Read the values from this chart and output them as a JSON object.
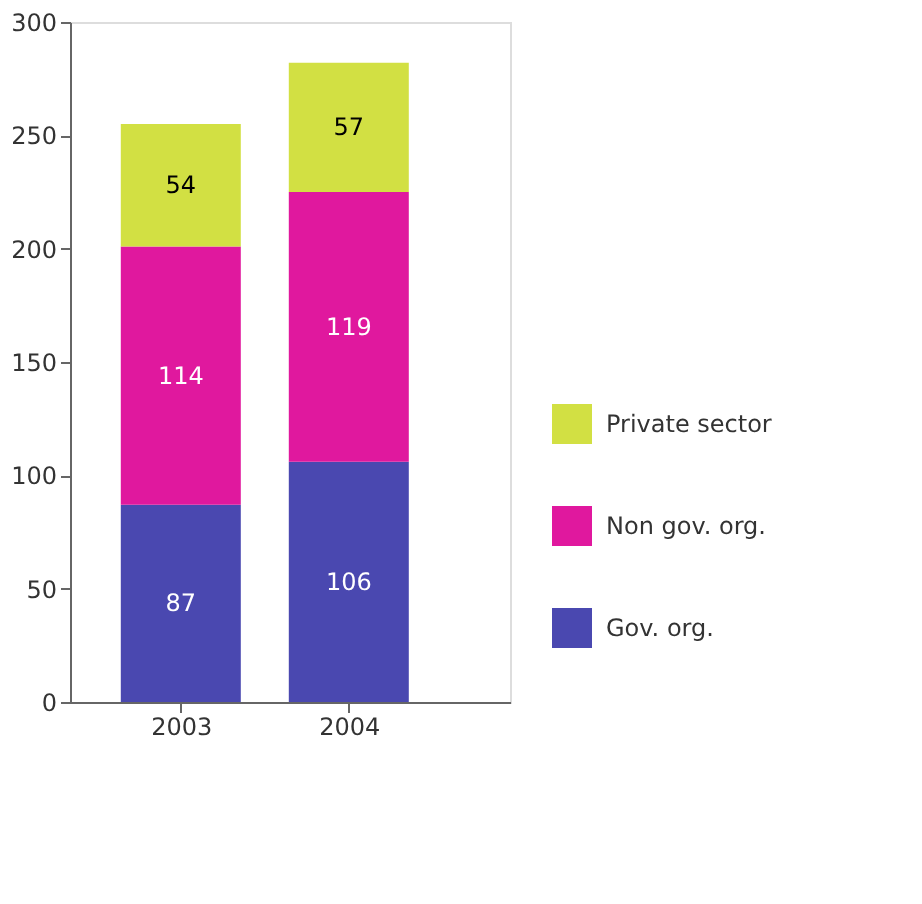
{
  "chart_data": {
    "type": "bar",
    "stacked": true,
    "categories": [
      "2003",
      "2004"
    ],
    "series": [
      {
        "name": "Gov. org.",
        "color": "#4a48b0",
        "values": [
          87,
          106
        ]
      },
      {
        "name": "Non gov. org.",
        "color": "#e0189e",
        "values": [
          114,
          119
        ]
      },
      {
        "name": "Private sector",
        "color": "#d2e043",
        "values": [
          54,
          57
        ]
      }
    ],
    "ylim": [
      0,
      300
    ],
    "yticks": [
      0,
      50,
      100,
      150,
      200,
      250,
      300
    ],
    "grid": false,
    "legend": "bottom right",
    "data_labels": true
  }
}
